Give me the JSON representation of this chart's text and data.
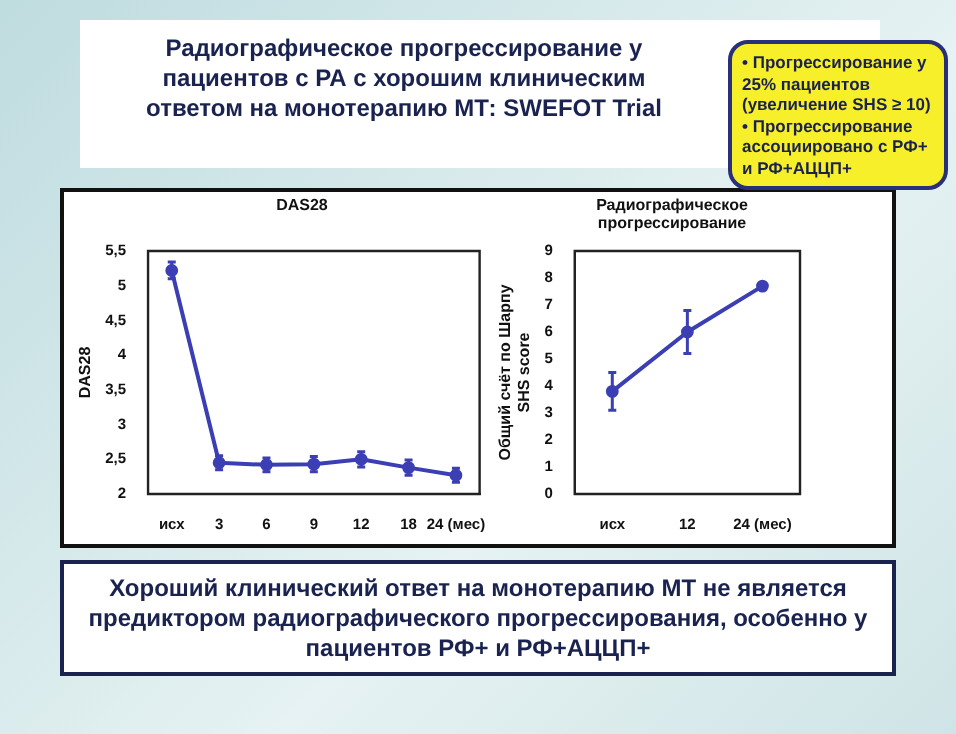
{
  "chart_data": [
    {
      "type": "line",
      "title": "DAS28",
      "ylabel": "DAS28",
      "categories": [
        "исх",
        "3",
        "6",
        "9",
        "12",
        "18",
        "24 (мес)"
      ],
      "series": [
        {
          "color": "#3b3fb3",
          "values": [
            5.22,
            2.45,
            2.42,
            2.43,
            2.5,
            2.38,
            2.27
          ],
          "errors": [
            0.12,
            0.1,
            0.1,
            0.11,
            0.11,
            0.11,
            0.1
          ]
        }
      ],
      "ylim": [
        2,
        5.5
      ],
      "yticks": [
        2,
        {
          "value": 2.5,
          "label": "2,5"
        },
        3,
        {
          "value": 3.5,
          "label": "3,5"
        },
        4,
        {
          "value": 4.5,
          "label": "4,5"
        },
        5,
        {
          "value": 5.5,
          "label": "5,5"
        }
      ],
      "marker": "circle",
      "grid": false,
      "legend": false,
      "annotations": [
        "Радиографическое прогрессирование у пациентов с РА с хорошим клиническим ответом на монотерапию МТ: SWEFOT Trial",
        "Хороший клинический ответ на монотерапию МТ не является предиктором радиографического прогрессирования, особенно у пациентов РФ+  и РФ+АЦЦП+"
      ]
    },
    {
      "type": "line",
      "title": "Радиографическое прогрессирование",
      "ylabel": "Общий счёт по Шарпу\nSHS score",
      "categories": [
        "исх",
        "12",
        "24 (мес)"
      ],
      "series": [
        {
          "color": "#3b3fb3",
          "values": [
            3.8,
            6.0,
            7.7
          ],
          "errors": [
            0.7,
            0.8,
            null
          ]
        }
      ],
      "ylim": [
        0,
        9
      ],
      "yticks": [
        0,
        1,
        2,
        3,
        4,
        5,
        6,
        7,
        8,
        9
      ],
      "marker": "circle",
      "grid": false,
      "legend": false,
      "annotations": [
        "• Прогрессирование у 25% пациентов (увеличение SHS ≥ 10)\n• Прогрессирование ассоциировано с РФ+ и РФ+АЦЦП+"
      ]
    }
  ]
}
